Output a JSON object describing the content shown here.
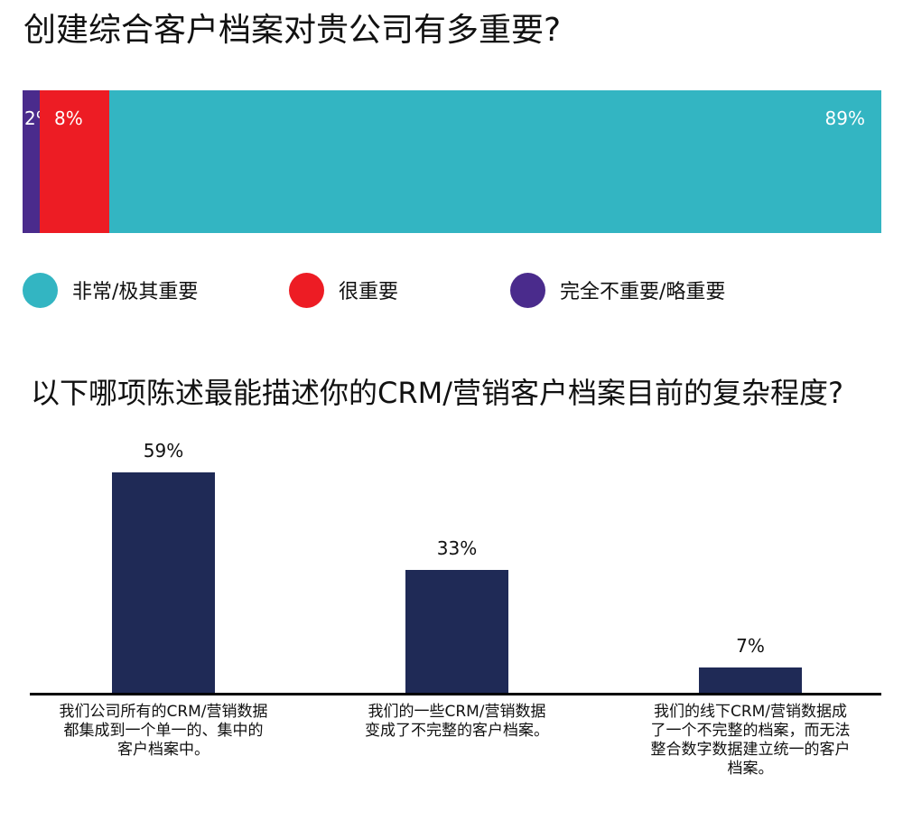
{
  "chart_data": [
    {
      "type": "bar",
      "orientation": "horizontal-stacked",
      "title": "创建综合客户档案对贵公司有多重要?",
      "categories": [
        "完全不重要/略重要",
        "很重要",
        "非常/极其重要"
      ],
      "values": [
        2,
        8,
        89
      ],
      "value_labels": [
        "2%",
        "8%",
        "89%"
      ],
      "colors": [
        "#4a2b8c",
        "#ed1c24",
        "#33b5c2"
      ],
      "legend": {
        "placement": "bottom",
        "items": [
          {
            "label": "非常/极其重要",
            "color": "#33b5c2"
          },
          {
            "label": "很重要",
            "color": "#ed1c24"
          },
          {
            "label": "完全不重要/略重要",
            "color": "#4a2b8c"
          }
        ]
      },
      "grid": false
    },
    {
      "type": "bar",
      "title": "以下哪项陈述最能描述你的CRM/营销客户档案目前的复杂程度?",
      "categories": [
        "我们公司所有的CRM/营销数据都集成到一个单一的、集中的客户档案中。",
        "我们的一些CRM/营销数据变成了不完整的客户档案。",
        "我们的线下CRM/营销数据成了一个不完整的档案，而无法整合数字数据建立统一的客户档案。"
      ],
      "category_label_lines": [
        [
          "我们公司所有的CRM/营销数据",
          "都集成到一个单一的、集中的",
          "客户档案中。"
        ],
        [
          "我们的一些CRM/营销数据",
          "变成了不完整的客户档案。"
        ],
        [
          "我们的线下CRM/营销数据成",
          "了一个不完整的档案，而无法",
          "整合数字数据建立统一的客户",
          "档案。"
        ]
      ],
      "values": [
        59,
        33,
        7
      ],
      "value_labels": [
        "59%",
        "33%",
        "7%"
      ],
      "ylim": [
        0,
        59
      ],
      "color": "#1f2a56",
      "grid": false
    }
  ]
}
